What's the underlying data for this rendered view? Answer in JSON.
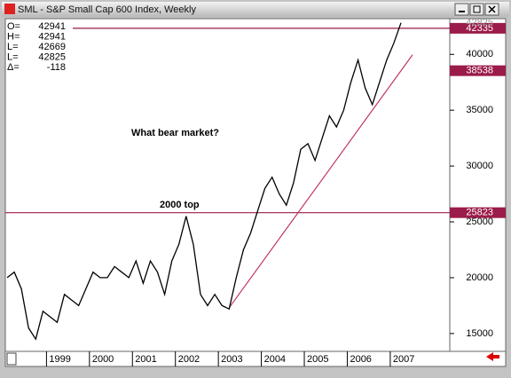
{
  "window": {
    "title": "SML - S&P Small Cap 600 Index, Weekly",
    "ohlc": [
      {
        "label": "O=",
        "value": 42941
      },
      {
        "label": "H=",
        "value": 42941
      },
      {
        "label": "L=",
        "value": 42669
      },
      {
        "label": "L=",
        "value": 42825
      },
      {
        "label": "Δ=",
        "value": -118
      }
    ]
  },
  "chart_data": {
    "type": "line",
    "categories": [
      null,
      null,
      null,
      null,
      null,
      null,
      "1999",
      null,
      null,
      null,
      null,
      null,
      "2000",
      null,
      null,
      null,
      null,
      null,
      "2001",
      null,
      null,
      null,
      null,
      null,
      "2002",
      null,
      null,
      null,
      null,
      null,
      "2003",
      null,
      null,
      null,
      null,
      null,
      "2004",
      null,
      null,
      null,
      null,
      null,
      "2005",
      null,
      null,
      null,
      null,
      null,
      "2006",
      null,
      null,
      null,
      null,
      null,
      "2007",
      null
    ],
    "series": [
      {
        "color": "#000000",
        "values": [
          20000,
          20500,
          19000,
          15500,
          14500,
          17000,
          16500,
          16000,
          18500,
          18000,
          17500,
          19000,
          20500,
          20000,
          20000,
          21000,
          20500,
          20000,
          21500,
          19500,
          21500,
          20500,
          18500,
          21500,
          23000,
          25500,
          23000,
          18500,
          17500,
          18500,
          17500,
          17200,
          20000,
          22500,
          24000,
          26000,
          28000,
          29000,
          27500,
          26500,
          28500,
          31500,
          32000,
          30500,
          32500,
          34500,
          33500,
          35000,
          37500,
          39500,
          37000,
          35500,
          37500,
          39500,
          41000,
          42825
        ]
      }
    ],
    "ylim": [
      13400,
      43200
    ],
    "yticks": [
      15000,
      20000,
      25000,
      30000,
      35000,
      40000
    ],
    "last_price": 42825,
    "hlines": [
      {
        "value": 42335,
        "color": "#9b1b4a"
      },
      {
        "value": 25823,
        "color": "#9b1b4a"
      }
    ],
    "trendline": {
      "values": [
        17300,
        38538
      ],
      "color": "#c0365e"
    },
    "annotations": [
      "What bear market?",
      "2000 top"
    ]
  }
}
